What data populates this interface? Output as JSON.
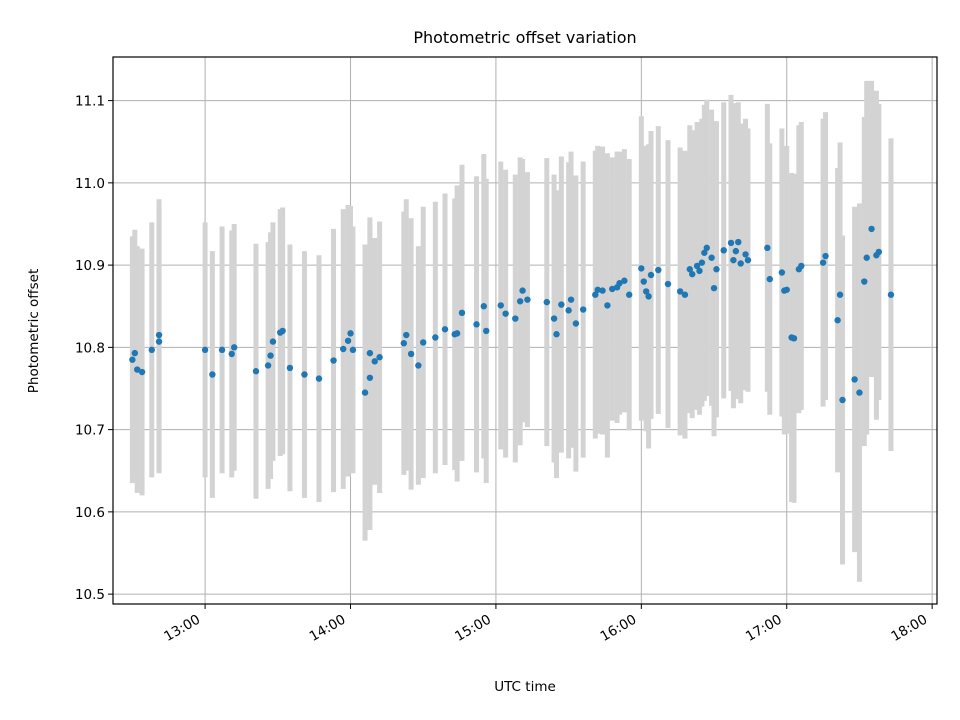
{
  "chart_data": {
    "type": "scatter",
    "title": "Photometric offset variation",
    "xlabel": "UTC time",
    "ylabel": "Photometric offset",
    "xlim": [
      "12:22",
      "18:02"
    ],
    "ylim": [
      10.488,
      11.153
    ],
    "grid": true,
    "x_ticks": [
      "13:00",
      "14:00",
      "15:00",
      "16:00",
      "17:00",
      "18:00"
    ],
    "y_ticks": [
      "10.5",
      "10.6",
      "10.7",
      "10.8",
      "10.9",
      "11.0",
      "11.1"
    ],
    "colors": {
      "marker": "#1f77b4",
      "errorbar": "#d3d3d3",
      "grid": "#b0b0b0"
    },
    "series": [
      {
        "marker": "circle",
        "errorbars": true,
        "points": [
          {
            "x": "12:30",
            "y": 10.785,
            "err": 0.15
          },
          {
            "x": "12:31",
            "y": 10.793,
            "err": 0.15
          },
          {
            "x": "12:32",
            "y": 10.773,
            "err": 0.15
          },
          {
            "x": "12:34",
            "y": 10.77,
            "err": 0.15
          },
          {
            "x": "12:38",
            "y": 10.797,
            "err": 0.155
          },
          {
            "x": "12:41",
            "y": 10.815,
            "err": 0.165
          },
          {
            "x": "12:41",
            "y": 10.807,
            "err": 0.16
          },
          {
            "x": "13:00",
            "y": 10.797,
            "err": 0.155
          },
          {
            "x": "13:03",
            "y": 10.767,
            "err": 0.15
          },
          {
            "x": "13:07",
            "y": 10.797,
            "err": 0.15
          },
          {
            "x": "13:11",
            "y": 10.792,
            "err": 0.15
          },
          {
            "x": "13:12",
            "y": 10.8,
            "err": 0.15
          },
          {
            "x": "13:21",
            "y": 10.771,
            "err": 0.155
          },
          {
            "x": "13:26",
            "y": 10.778,
            "err": 0.15
          },
          {
            "x": "13:27",
            "y": 10.79,
            "err": 0.15
          },
          {
            "x": "13:28",
            "y": 10.807,
            "err": 0.145
          },
          {
            "x": "13:31",
            "y": 10.818,
            "err": 0.15
          },
          {
            "x": "13:32",
            "y": 10.82,
            "err": 0.15
          },
          {
            "x": "13:35",
            "y": 10.775,
            "err": 0.15
          },
          {
            "x": "13:41",
            "y": 10.767,
            "err": 0.15
          },
          {
            "x": "13:47",
            "y": 10.762,
            "err": 0.15
          },
          {
            "x": "13:53",
            "y": 10.784,
            "err": 0.16
          },
          {
            "x": "13:57",
            "y": 10.798,
            "err": 0.17
          },
          {
            "x": "13:59",
            "y": 10.808,
            "err": 0.165
          },
          {
            "x": "14:00",
            "y": 10.817,
            "err": 0.155
          },
          {
            "x": "14:01",
            "y": 10.797,
            "err": 0.15
          },
          {
            "x": "14:06",
            "y": 10.745,
            "err": 0.18
          },
          {
            "x": "14:08",
            "y": 10.763,
            "err": 0.185
          },
          {
            "x": "14:08",
            "y": 10.793,
            "err": 0.165
          },
          {
            "x": "14:10",
            "y": 10.783,
            "err": 0.15
          },
          {
            "x": "14:12",
            "y": 10.788,
            "err": 0.165
          },
          {
            "x": "14:22",
            "y": 10.805,
            "err": 0.16
          },
          {
            "x": "14:23",
            "y": 10.815,
            "err": 0.165
          },
          {
            "x": "14:25",
            "y": 10.792,
            "err": 0.165
          },
          {
            "x": "14:28",
            "y": 10.778,
            "err": 0.145
          },
          {
            "x": "14:30",
            "y": 10.806,
            "err": 0.165
          },
          {
            "x": "14:35",
            "y": 10.812,
            "err": 0.165
          },
          {
            "x": "14:39",
            "y": 10.822,
            "err": 0.165
          },
          {
            "x": "14:43",
            "y": 10.816,
            "err": 0.165
          },
          {
            "x": "14:44",
            "y": 10.817,
            "err": 0.18
          },
          {
            "x": "14:46",
            "y": 10.842,
            "err": 0.18
          },
          {
            "x": "14:52",
            "y": 10.828,
            "err": 0.18
          },
          {
            "x": "14:55",
            "y": 10.85,
            "err": 0.185
          },
          {
            "x": "14:56",
            "y": 10.82,
            "err": 0.185
          },
          {
            "x": "15:02",
            "y": 10.851,
            "err": 0.175
          },
          {
            "x": "15:04",
            "y": 10.841,
            "err": 0.175
          },
          {
            "x": "15:08",
            "y": 10.835,
            "err": 0.175
          },
          {
            "x": "15:10",
            "y": 10.856,
            "err": 0.175
          },
          {
            "x": "15:11",
            "y": 10.869,
            "err": 0.16
          },
          {
            "x": "15:13",
            "y": 10.858,
            "err": 0.155
          },
          {
            "x": "15:21",
            "y": 10.855,
            "err": 0.175
          },
          {
            "x": "15:24",
            "y": 10.835,
            "err": 0.175
          },
          {
            "x": "15:25",
            "y": 10.816,
            "err": 0.175
          },
          {
            "x": "15:27",
            "y": 10.852,
            "err": 0.18
          },
          {
            "x": "15:30",
            "y": 10.845,
            "err": 0.18
          },
          {
            "x": "15:31",
            "y": 10.858,
            "err": 0.18
          },
          {
            "x": "15:33",
            "y": 10.829,
            "err": 0.18
          },
          {
            "x": "15:36",
            "y": 10.846,
            "err": 0.18
          },
          {
            "x": "15:41",
            "y": 10.864,
            "err": 0.175
          },
          {
            "x": "15:42",
            "y": 10.87,
            "err": 0.175
          },
          {
            "x": "15:44",
            "y": 10.869,
            "err": 0.175
          },
          {
            "x": "15:46",
            "y": 10.851,
            "err": 0.185
          },
          {
            "x": "15:48",
            "y": 10.871,
            "err": 0.16
          },
          {
            "x": "15:50",
            "y": 10.873,
            "err": 0.165
          },
          {
            "x": "15:51",
            "y": 10.878,
            "err": 0.16
          },
          {
            "x": "15:53",
            "y": 10.881,
            "err": 0.16
          },
          {
            "x": "15:55",
            "y": 10.864,
            "err": 0.165
          },
          {
            "x": "16:00",
            "y": 10.896,
            "err": 0.185
          },
          {
            "x": "16:01",
            "y": 10.88,
            "err": 0.165
          },
          {
            "x": "16:02",
            "y": 10.868,
            "err": 0.17
          },
          {
            "x": "16:03",
            "y": 10.862,
            "err": 0.185
          },
          {
            "x": "16:04",
            "y": 10.888,
            "err": 0.175
          },
          {
            "x": "16:07",
            "y": 10.894,
            "err": 0.175
          },
          {
            "x": "16:11",
            "y": 10.877,
            "err": 0.175
          },
          {
            "x": "16:16",
            "y": 10.868,
            "err": 0.175
          },
          {
            "x": "16:18",
            "y": 10.864,
            "err": 0.175
          },
          {
            "x": "16:20",
            "y": 10.895,
            "err": 0.175
          },
          {
            "x": "16:21",
            "y": 10.889,
            "err": 0.175
          },
          {
            "x": "16:23",
            "y": 10.899,
            "err": 0.175
          },
          {
            "x": "16:24",
            "y": 10.893,
            "err": 0.175
          },
          {
            "x": "16:25",
            "y": 10.903,
            "err": 0.175
          },
          {
            "x": "16:26",
            "y": 10.915,
            "err": 0.18
          },
          {
            "x": "16:27",
            "y": 10.921,
            "err": 0.18
          },
          {
            "x": "16:29",
            "y": 10.909,
            "err": 0.18
          },
          {
            "x": "16:30",
            "y": 10.872,
            "err": 0.18
          },
          {
            "x": "16:31",
            "y": 10.895,
            "err": 0.18
          },
          {
            "x": "16:34",
            "y": 10.918,
            "err": 0.18
          },
          {
            "x": "16:37",
            "y": 10.927,
            "err": 0.18
          },
          {
            "x": "16:38",
            "y": 10.906,
            "err": 0.18
          },
          {
            "x": "16:39",
            "y": 10.917,
            "err": 0.18
          },
          {
            "x": "16:40",
            "y": 10.928,
            "err": 0.17
          },
          {
            "x": "16:41",
            "y": 10.902,
            "err": 0.17
          },
          {
            "x": "16:43",
            "y": 10.913,
            "err": 0.165
          },
          {
            "x": "16:44",
            "y": 10.906,
            "err": 0.16
          },
          {
            "x": "16:52",
            "y": 10.921,
            "err": 0.175
          },
          {
            "x": "16:53",
            "y": 10.883,
            "err": 0.165
          },
          {
            "x": "16:58",
            "y": 10.891,
            "err": 0.175
          },
          {
            "x": "16:59",
            "y": 10.869,
            "err": 0.175
          },
          {
            "x": "17:00",
            "y": 10.87,
            "err": 0.175
          },
          {
            "x": "17:02",
            "y": 10.812,
            "err": 0.2
          },
          {
            "x": "17:03",
            "y": 10.811,
            "err": 0.2
          },
          {
            "x": "17:05",
            "y": 10.895,
            "err": 0.175
          },
          {
            "x": "17:06",
            "y": 10.899,
            "err": 0.175
          },
          {
            "x": "17:15",
            "y": 10.903,
            "err": 0.175
          },
          {
            "x": "17:16",
            "y": 10.911,
            "err": 0.175
          },
          {
            "x": "17:21",
            "y": 10.833,
            "err": 0.185
          },
          {
            "x": "17:22",
            "y": 10.864,
            "err": 0.185
          },
          {
            "x": "17:23",
            "y": 10.736,
            "err": 0.2
          },
          {
            "x": "17:28",
            "y": 10.761,
            "err": 0.21
          },
          {
            "x": "17:30",
            "y": 10.745,
            "err": 0.23
          },
          {
            "x": "17:32",
            "y": 10.88,
            "err": 0.2
          },
          {
            "x": "17:33",
            "y": 10.909,
            "err": 0.215
          },
          {
            "x": "17:35",
            "y": 10.944,
            "err": 0.18
          },
          {
            "x": "17:37",
            "y": 10.912,
            "err": 0.2
          },
          {
            "x": "17:38",
            "y": 10.916,
            "err": 0.18
          },
          {
            "x": "17:43",
            "y": 10.864,
            "err": 0.19
          }
        ]
      }
    ]
  }
}
